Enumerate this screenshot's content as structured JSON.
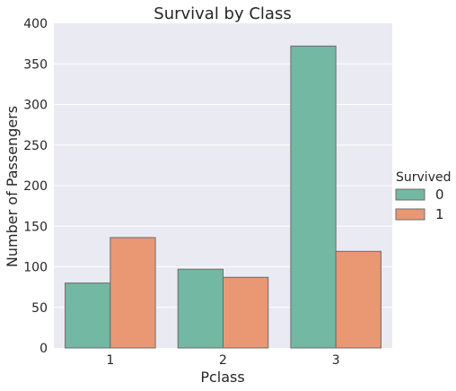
{
  "chart_data": {
    "type": "bar",
    "title": "Survival by Class",
    "xlabel": "Pclass",
    "ylabel": "Number of Passengers",
    "categories": [
      "1",
      "2",
      "3"
    ],
    "series": [
      {
        "name": "0",
        "values": [
          80,
          97,
          372
        ],
        "color": "#72b8a2"
      },
      {
        "name": "1",
        "values": [
          136,
          87,
          119
        ],
        "color": "#ea9774"
      }
    ],
    "ylim": [
      0,
      400
    ],
    "yticks": [
      0,
      50,
      100,
      150,
      200,
      250,
      300,
      350,
      400
    ],
    "grid": true,
    "legend": {
      "title": "Survived",
      "placement": "right"
    },
    "background": "#eaeaf2",
    "bar_edge_color": "#6b6b6b"
  }
}
